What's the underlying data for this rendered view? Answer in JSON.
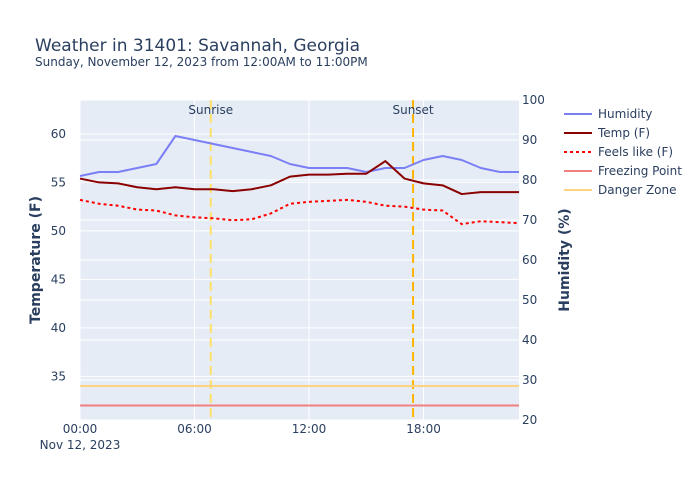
{
  "chart_data": {
    "type": "line",
    "title": "Weather in 31401: Savannah, Georgia",
    "subtitle": "Sunday, November 12, 2023 from 12:00AM to 11:00PM",
    "xlabel": "",
    "ylabel": "Temperature (F)",
    "y2label": "Humidity (%)",
    "x_hours": [
      0,
      1,
      2,
      3,
      4,
      5,
      6,
      7,
      8,
      9,
      10,
      11,
      12,
      13,
      14,
      15,
      16,
      17,
      18,
      19,
      20,
      21,
      22,
      23
    ],
    "x_range_hours": [
      0,
      23
    ],
    "x_ticks": [
      {
        "hour": 0,
        "label": "00:00",
        "sublabel": "Nov 12, 2023"
      },
      {
        "hour": 6,
        "label": "06:00"
      },
      {
        "hour": 12,
        "label": "12:00"
      },
      {
        "hour": 18,
        "label": "18:00"
      }
    ],
    "ylim": [
      30.5,
      63.5
    ],
    "y_ticks": [
      35,
      40,
      45,
      50,
      55,
      60
    ],
    "y2lim": [
      20,
      100
    ],
    "y2_ticks": [
      20,
      30,
      40,
      50,
      60,
      70,
      80,
      90,
      100
    ],
    "grid": true,
    "legend_position": "right",
    "series": [
      {
        "name": "Humidity",
        "axis": "y2",
        "color": "#7b7ff5",
        "dash": "solid",
        "values": [
          81,
          82,
          82,
          83,
          84,
          91,
          90,
          89,
          88,
          87,
          86,
          84,
          83,
          83,
          83,
          82,
          83,
          83,
          85,
          86,
          85,
          83,
          82,
          82
        ]
      },
      {
        "name": "Temp (F)",
        "axis": "y",
        "color": "#8b0000",
        "dash": "solid",
        "values": [
          55.4,
          55.0,
          54.9,
          54.5,
          54.3,
          54.5,
          54.3,
          54.3,
          54.1,
          54.3,
          54.7,
          55.6,
          55.8,
          55.8,
          55.9,
          55.9,
          57.2,
          55.4,
          54.9,
          54.7,
          53.8,
          54.0,
          54.0,
          54.0
        ]
      },
      {
        "name": "Feels like (F)",
        "axis": "y",
        "color": "#ff0000",
        "dash": "dot",
        "values": [
          53.2,
          52.8,
          52.6,
          52.2,
          52.1,
          51.6,
          51.4,
          51.3,
          51.1,
          51.2,
          51.8,
          52.8,
          53.0,
          53.1,
          53.2,
          53.0,
          52.6,
          52.5,
          52.2,
          52.1,
          50.7,
          51.0,
          50.9,
          50.8
        ]
      },
      {
        "name": "Freezing Point",
        "axis": "y",
        "color": "#f08080",
        "dash": "solid",
        "constant": 32
      },
      {
        "name": "Danger Zone",
        "axis": "y",
        "color": "#ffd27f",
        "dash": "solid",
        "constant": 34
      }
    ],
    "annotations": [
      {
        "label": "Sunrise",
        "hour": 6.85,
        "color": "#ffe066"
      },
      {
        "label": "Sunset",
        "hour": 17.45,
        "color": "#ffb400"
      }
    ],
    "colors": {
      "plot_bg": "#e5ecf6",
      "grid": "#ffffff",
      "text": "#2a3f5f"
    }
  }
}
